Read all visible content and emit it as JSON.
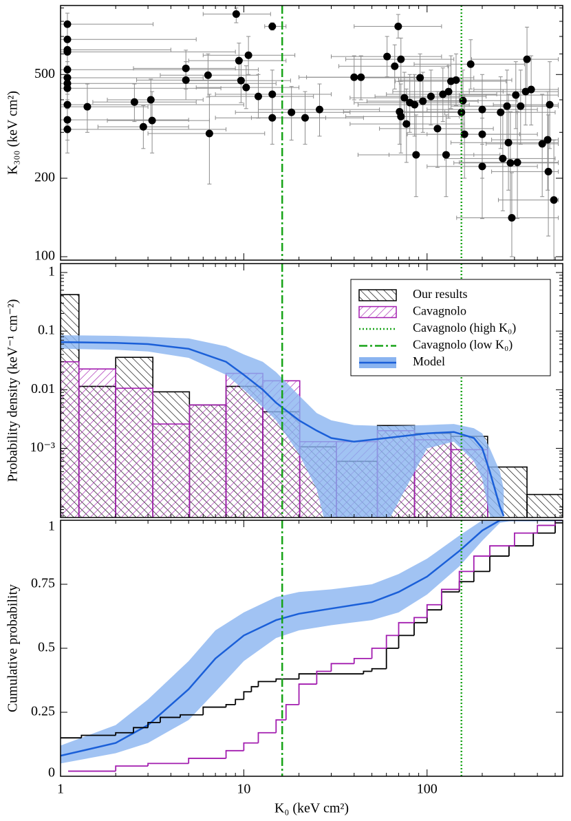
{
  "chart_data": [
    {
      "type": "scatter",
      "ylabel": "K₃₀₀ (keV cm²)",
      "xscale": "log",
      "yscale": "log",
      "xlim": [
        1,
        550
      ],
      "ylim": [
        97,
        920
      ],
      "yticks": [
        100,
        200,
        500
      ],
      "color": "#000000",
      "error_color": "#8c8c8c",
      "x": [
        1.09,
        1.09,
        1.09,
        1.09,
        1.09,
        1.09,
        1.09,
        1.09,
        1.09,
        1.09,
        1.09,
        1.4,
        2.53,
        2.83,
        3.11,
        3.16,
        4.83,
        4.83,
        6.38,
        6.49,
        9.09,
        9.41,
        9.66,
        10.3,
        10.6,
        12.0,
        14.3,
        14.3,
        14.3,
        18.2,
        21.6,
        25.9,
        40.0,
        43.6,
        60.5,
        66.6,
        69.6,
        70.8,
        72.0,
        72.0,
        75.2,
        77.2,
        80.5,
        85.5,
        87.1,
        91.6,
        94.9,
        105,
        114,
        122,
        127,
        131,
        135,
        144,
        154,
        157,
        160,
        173,
        200,
        200,
        200,
        252,
        259,
        273,
        278,
        285,
        290,
        305,
        311,
        324,
        345,
        351,
        370,
        425,
        455,
        459,
        467,
        492
      ],
      "y": [
        780,
        682,
        622,
        611,
        522,
        486,
        462,
        443,
        383,
        335,
        308,
        376,
        392,
        315,
        400,
        333,
        528,
        476,
        497,
        297,
        853,
        565,
        474,
        446,
        593,
        412,
        765,
        420,
        341,
        358,
        341,
        367,
        488,
        488,
        586,
        538,
        765,
        360,
        572,
        345,
        407,
        323,
        390,
        383,
        246,
        486,
        395,
        412,
        310,
        420,
        246,
        430,
        471,
        476,
        358,
        397,
        295,
        548,
        367,
        295,
        222,
        358,
        238,
        378,
        274,
        229,
        141,
        417,
        230,
        378,
        430,
        572,
        438,
        271,
        281,
        212,
        383,
        165
      ],
      "x_low": [
        1.0,
        1.0,
        1.0,
        1.0,
        1.0,
        1.0,
        1.0,
        1.0,
        1.0,
        1.0,
        1.0,
        1.0,
        1.5,
        1.6,
        1.8,
        1.8,
        2.5,
        2.6,
        3.5,
        3.0,
        6.0,
        5.0,
        5.0,
        5.5,
        6.0,
        6.5,
        13,
        7,
        7,
        9,
        11,
        12,
        20,
        22,
        30,
        33,
        40,
        35,
        36,
        36,
        38,
        38,
        40,
        42,
        42,
        45,
        47,
        52,
        55,
        60,
        62,
        65,
        67,
        70,
        75,
        77,
        78,
        85,
        100,
        100,
        100,
        125,
        125,
        135,
        135,
        140,
        145,
        150,
        150,
        160,
        170,
        175,
        180,
        210,
        225,
        225,
        230,
        245
      ],
      "x_high": [
        3.2,
        5.5,
        4.0,
        9.0,
        12,
        6.0,
        15,
        7.5,
        10,
        5.0,
        8.0,
        3.0,
        5.5,
        5.0,
        6.0,
        6.5,
        9.0,
        9.5,
        12,
        13,
        14,
        17,
        18,
        20,
        19,
        24,
        17,
        30,
        28,
        38,
        45,
        55,
        85,
        90,
        120,
        130,
        120,
        150,
        140,
        150,
        150,
        160,
        160,
        170,
        180,
        180,
        190,
        210,
        230,
        240,
        250,
        260,
        270,
        290,
        310,
        310,
        320,
        340,
        400,
        400,
        400,
        500,
        500,
        520,
        520,
        520,
        520,
        520,
        520,
        520,
        520,
        520,
        520,
        520,
        520,
        520,
        520,
        520
      ],
      "y_low": [
        700,
        600,
        540,
        530,
        450,
        420,
        390,
        370,
        320,
        280,
        250,
        300,
        330,
        260,
        330,
        250,
        440,
        400,
        410,
        190,
        790,
        480,
        390,
        370,
        500,
        340,
        740,
        340,
        270,
        280,
        270,
        290,
        400,
        400,
        490,
        440,
        690,
        270,
        470,
        250,
        320,
        230,
        300,
        290,
        170,
        390,
        300,
        320,
        220,
        330,
        170,
        340,
        370,
        380,
        270,
        300,
        200,
        440,
        270,
        200,
        140,
        260,
        150,
        270,
        180,
        140,
        100,
        310,
        140,
        270,
        320,
        430,
        320,
        170,
        180,
        120,
        260,
        97
      ],
      "y_high": [
        860,
        760,
        700,
        690,
        600,
        560,
        540,
        520,
        450,
        400,
        370,
        460,
        460,
        380,
        480,
        430,
        620,
        560,
        600,
        420,
        900,
        660,
        570,
        540,
        700,
        500,
        790,
        520,
        430,
        450,
        430,
        460,
        590,
        590,
        700,
        650,
        850,
        470,
        690,
        460,
        510,
        440,
        500,
        500,
        350,
        600,
        510,
        520,
        430,
        530,
        350,
        540,
        590,
        600,
        470,
        520,
        420,
        680,
        500,
        430,
        340,
        490,
        360,
        520,
        420,
        360,
        210,
        560,
        360,
        520,
        580,
        760,
        590,
        420,
        430,
        350,
        560,
        280
      ]
    },
    {
      "type": "histogram",
      "ylabel": "Probability density (keV⁻¹ cm⁻²)",
      "xscale": "log",
      "yscale": "log",
      "xlim": [
        1,
        550
      ],
      "ylim": [
        6.6e-05,
        1.42
      ],
      "yticks": [
        1,
        0.1,
        0.01,
        {
          "value": 0.001,
          "label": "10⁻³"
        }
      ],
      "bins": [
        1,
        1.26,
        2.0,
        3.19,
        5.05,
        8.0,
        12.7,
        20.2,
        32,
        53.6,
        85.5,
        135,
        214,
        351,
        550
      ],
      "series": [
        {
          "name": "Our results",
          "color": "#000000",
          "values": [
            0.42,
            0.0114,
            0.0357,
            0.0092,
            0.0055,
            0.0114,
            0.0042,
            0.00106,
            0.0006,
            0.00245,
            0.0018,
            0.0016,
            0.00048,
            0.000163
          ]
        },
        {
          "name": "Cavagnolo",
          "color": "#a21caf",
          "values": [
            0.03,
            0.0226,
            0.0106,
            0.0026,
            0.0055,
            0.019,
            0.0142,
            0.0013,
            0.0013,
            0.002,
            0.0014,
            0.00095,
            null,
            null
          ]
        }
      ],
      "vlines": [
        {
          "name": "Cavagnolo (high K₀)",
          "x": 154,
          "color": "#17a317",
          "style": "dotted"
        },
        {
          "name": "Cavagnolo (low K₀)",
          "x": 16.2,
          "color": "#17a317",
          "style": "dashdot"
        }
      ],
      "model": {
        "name": "Model",
        "color": "#1a5fd8",
        "band_color": "#8ab4f0",
        "x": [
          1,
          2,
          3,
          5,
          8,
          10,
          12.7,
          15,
          20,
          25,
          30,
          40,
          60,
          100,
          140,
          180,
          200,
          220,
          250,
          262
        ],
        "values": [
          0.065,
          0.063,
          0.06,
          0.05,
          0.03,
          0.018,
          0.01,
          0.006,
          0.003,
          0.002,
          0.0015,
          0.0013,
          0.0015,
          0.0018,
          0.0019,
          0.0015,
          0.001,
          0.0004,
          0.0001,
          7e-05
        ],
        "upper": [
          0.085,
          0.083,
          0.08,
          0.075,
          0.055,
          0.04,
          0.03,
          0.02,
          0.008,
          0.004,
          0.003,
          0.0025,
          0.0024,
          0.0025,
          0.0026,
          0.0022,
          0.0018,
          0.001,
          0.0004,
          0.0002
        ],
        "lower": [
          0.05,
          0.048,
          0.045,
          0.035,
          0.018,
          0.01,
          0.005,
          0.003,
          0.0008,
          0.0002,
          2e-05,
          1e-05,
          5e-05,
          0.001,
          0.0013,
          0.0006,
          0.0003,
          7e-05,
          2e-05,
          1e-05
        ]
      },
      "legend": "upper right"
    },
    {
      "type": "step",
      "ylabel": "Cumulative probability",
      "xlabel": "K₀ (keV cm²)",
      "xscale": "log",
      "yscale": "linear",
      "xlim": [
        1,
        550
      ],
      "ylim": [
        0,
        1.0
      ],
      "xticks": [
        1,
        10,
        100
      ],
      "yticks": [
        0,
        0.25,
        0.5,
        0.75,
        1
      ],
      "series": [
        {
          "name": "Our results",
          "color": "#000000",
          "x": [
            1,
            1.3,
            2,
            2.5,
            3,
            3.5,
            4.5,
            6,
            8,
            9,
            10,
            11,
            12,
            15,
            20,
            45,
            50,
            60,
            70,
            85,
            100,
            120,
            150,
            180,
            220,
            280,
            380,
            500
          ],
          "values": [
            0.15,
            0.16,
            0.17,
            0.19,
            0.21,
            0.23,
            0.24,
            0.27,
            0.28,
            0.3,
            0.33,
            0.35,
            0.37,
            0.38,
            0.4,
            0.41,
            0.42,
            0.5,
            0.55,
            0.6,
            0.65,
            0.72,
            0.76,
            0.8,
            0.86,
            0.9,
            0.95,
            0.99
          ]
        },
        {
          "name": "Cavagnolo",
          "color": "#a21caf",
          "x": [
            1.1,
            2,
            3,
            5,
            8,
            10,
            12,
            15,
            17,
            20,
            25,
            30,
            40,
            50,
            60,
            70,
            85,
            100,
            120,
            150,
            180,
            220,
            300,
            400,
            500
          ],
          "values": [
            0.02,
            0.04,
            0.05,
            0.07,
            0.1,
            0.13,
            0.17,
            0.22,
            0.28,
            0.36,
            0.41,
            0.44,
            0.46,
            0.5,
            0.55,
            0.6,
            0.62,
            0.67,
            0.73,
            0.8,
            0.86,
            0.9,
            0.95,
            0.98,
            1.0
          ]
        }
      ],
      "model": {
        "name": "Model",
        "color": "#1a5fd8",
        "band_color": "#8ab4f0",
        "x": [
          1,
          2,
          3,
          5,
          7,
          10,
          15,
          20,
          30,
          50,
          70,
          100,
          150,
          200,
          250,
          300,
          550
        ],
        "values": [
          0.08,
          0.13,
          0.2,
          0.34,
          0.46,
          0.55,
          0.61,
          0.635,
          0.655,
          0.68,
          0.72,
          0.78,
          0.88,
          0.96,
          1.0,
          1.0,
          1.0
        ],
        "upper": [
          0.12,
          0.2,
          0.3,
          0.45,
          0.57,
          0.64,
          0.7,
          0.72,
          0.73,
          0.75,
          0.79,
          0.85,
          0.94,
          1.0,
          1.0,
          1.0,
          1.0
        ],
        "lower": [
          0.05,
          0.09,
          0.13,
          0.22,
          0.33,
          0.45,
          0.54,
          0.57,
          0.59,
          0.61,
          0.64,
          0.71,
          0.82,
          0.92,
          0.99,
          1.0,
          1.0
        ]
      }
    }
  ]
}
